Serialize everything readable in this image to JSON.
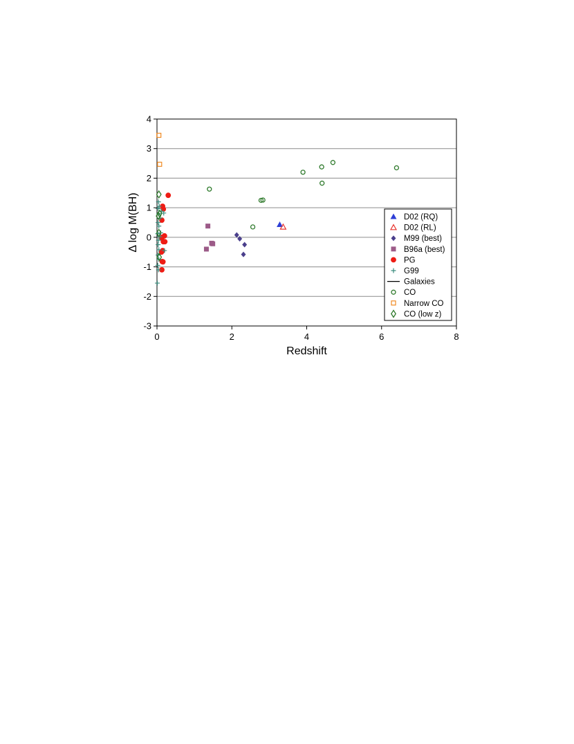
{
  "chart_data": {
    "type": "scatter",
    "xlabel": "Redshift",
    "ylabel": "Δ log M(BH)",
    "xlim": [
      0,
      8
    ],
    "ylim": [
      -3,
      4
    ],
    "xticks": [
      "0",
      "2",
      "4",
      "6",
      "8"
    ],
    "yticks": [
      "-3",
      "-2",
      "-1",
      "0",
      "1",
      "2",
      "3",
      "4"
    ],
    "grid": "horizontal",
    "legend_position": "right",
    "legend": [
      {
        "label": "D02 (RQ)",
        "marker": "triangle-filled",
        "color": "#2E3FD6"
      },
      {
        "label": "D02 (RL)",
        "marker": "triangle-open",
        "color": "#E8342E"
      },
      {
        "label": "M99 (best)",
        "marker": "diamond-filled",
        "color": "#4A3F8C"
      },
      {
        "label": "B96a (best)",
        "marker": "square-filled",
        "color": "#9C5B88"
      },
      {
        "label": "PG",
        "marker": "circle-filled",
        "color": "#EE1C14"
      },
      {
        "label": "G99",
        "marker": "plus",
        "color": "#3B8C7E"
      },
      {
        "label": "Galaxies",
        "marker": "line",
        "color": "#000000"
      },
      {
        "label": "CO",
        "marker": "circle-open",
        "color": "#2F7A2C"
      },
      {
        "label": "Narrow CO",
        "marker": "square-open",
        "color": "#F08A22"
      },
      {
        "label": "CO (low z)",
        "marker": "diamond-open",
        "color": "#2F7A2C"
      }
    ],
    "series": [
      {
        "name": "D02 (RQ)",
        "points": [
          [
            3.28,
            0.43
          ]
        ]
      },
      {
        "name": "D02 (RL)",
        "points": [
          [
            3.37,
            0.35
          ]
        ]
      },
      {
        "name": "M99 (best)",
        "points": [
          [
            2.13,
            0.08
          ],
          [
            2.21,
            -0.05
          ],
          [
            2.34,
            -0.25
          ],
          [
            2.31,
            -0.58
          ]
        ]
      },
      {
        "name": "B96a (best)",
        "points": [
          [
            1.36,
            0.38
          ],
          [
            1.46,
            -0.2
          ],
          [
            1.49,
            -0.22
          ],
          [
            1.32,
            -0.4
          ]
        ]
      },
      {
        "name": "PG",
        "points": [
          [
            0.3,
            1.42
          ],
          [
            0.15,
            1.05
          ],
          [
            0.17,
            0.95
          ],
          [
            0.13,
            0.58
          ],
          [
            0.2,
            0.05
          ],
          [
            0.14,
            0.0
          ],
          [
            0.12,
            -0.02
          ],
          [
            0.17,
            -0.15
          ],
          [
            0.21,
            -0.15
          ],
          [
            0.15,
            -0.45
          ],
          [
            0.12,
            -0.5
          ],
          [
            0.14,
            -0.82
          ],
          [
            0.16,
            -0.83
          ],
          [
            0.13,
            -1.1
          ]
        ]
      },
      {
        "name": "G99",
        "points": [
          [
            0.04,
            1.2
          ],
          [
            0.06,
            1.05
          ],
          [
            0.03,
            0.97
          ],
          [
            0.05,
            0.8
          ],
          [
            0.08,
            0.65
          ],
          [
            0.03,
            0.5
          ],
          [
            0.05,
            0.38
          ],
          [
            0.02,
            0.12
          ],
          [
            0.07,
            0.02
          ],
          [
            0.04,
            -0.1
          ],
          [
            0.03,
            -0.25
          ],
          [
            0.05,
            -0.42
          ],
          [
            0.2,
            -0.45
          ],
          [
            0.03,
            -0.6
          ],
          [
            0.05,
            -0.75
          ],
          [
            0.02,
            -0.95
          ],
          [
            0.04,
            -1.1
          ],
          [
            0.01,
            -1.55
          ],
          [
            0.12,
            0.88
          ],
          [
            0.18,
            0.82
          ],
          [
            0.1,
            0.15
          ]
        ]
      },
      {
        "name": "CO",
        "points": [
          [
            1.4,
            1.63
          ],
          [
            3.9,
            2.2
          ],
          [
            4.4,
            2.38
          ],
          [
            4.7,
            2.53
          ],
          [
            4.41,
            1.83
          ],
          [
            6.4,
            2.35
          ],
          [
            2.78,
            1.25
          ],
          [
            2.83,
            1.26
          ],
          [
            2.56,
            0.35
          ]
        ]
      },
      {
        "name": "Narrow CO",
        "points": [
          [
            0.05,
            3.45
          ],
          [
            0.07,
            2.47
          ]
        ]
      },
      {
        "name": "CO (low z)",
        "points": [
          [
            0.05,
            1.45
          ],
          [
            0.04,
            0.72
          ],
          [
            0.07,
            0.8
          ],
          [
            0.05,
            0.15
          ],
          [
            0.06,
            -0.67
          ]
        ]
      }
    ]
  }
}
